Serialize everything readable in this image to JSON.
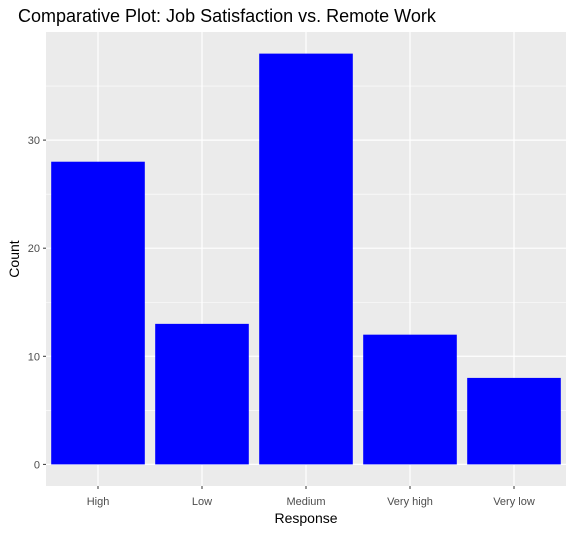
{
  "chart_data": {
    "type": "bar",
    "title": "Comparative Plot: Job Satisfaction vs. Remote Work",
    "xlabel": "Response",
    "ylabel": "Count",
    "categories": [
      "High",
      "Low",
      "Medium",
      "Very high",
      "Very low"
    ],
    "values": [
      28,
      13,
      38,
      12,
      8
    ],
    "ylim": [
      -2,
      40
    ],
    "yticks": [
      0,
      10,
      20,
      30
    ],
    "ytick_labels": [
      "0",
      "10",
      "20",
      "30"
    ],
    "bar_color": "#0000ff",
    "panel_background": "#ebebeb",
    "grid": true,
    "legend": "none"
  }
}
